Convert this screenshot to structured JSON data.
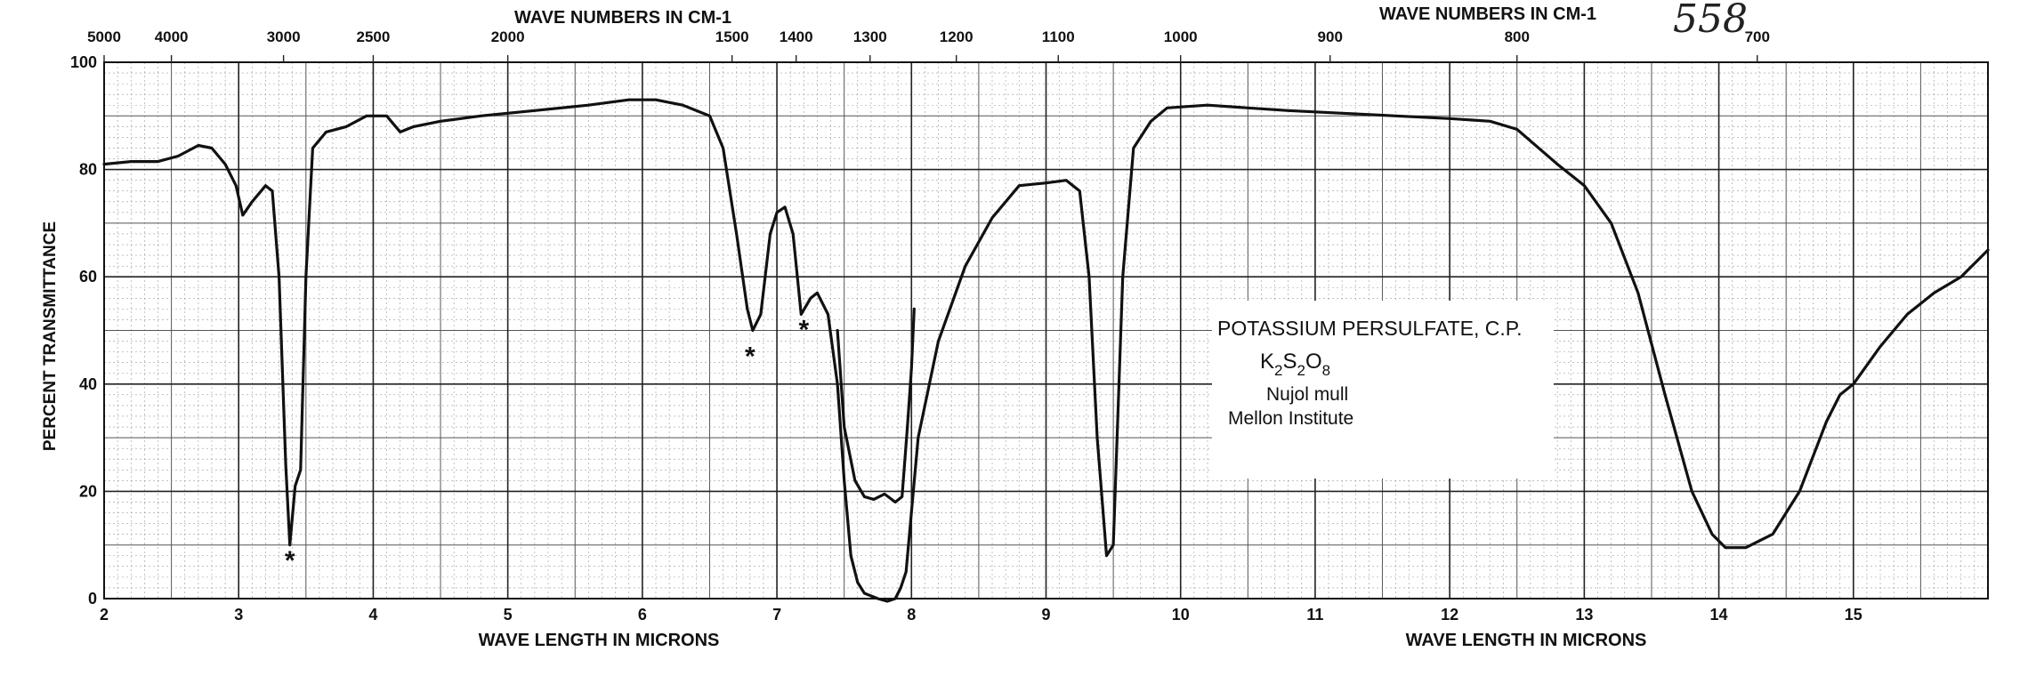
{
  "page_number": "558",
  "chart_data": {
    "type": "line",
    "title": "",
    "xlabel": "WAVE LENGTH IN MICRONS",
    "ylabel": "PERCENT TRANSMITTANCE",
    "top_axis_label": "WAVE NUMBERS IN CM-1",
    "xlim": [
      2,
      16
    ],
    "ylim": [
      0,
      100
    ],
    "x_ticks": [
      2,
      3,
      4,
      5,
      6,
      7,
      8,
      9,
      10,
      11,
      12,
      13,
      14,
      15
    ],
    "y_ticks": [
      0,
      20,
      40,
      60,
      80,
      100
    ],
    "top_ticks": [
      5000,
      4000,
      3000,
      2500,
      2000,
      1500,
      1400,
      1300,
      1200,
      1100,
      1000,
      900,
      800,
      700
    ],
    "grid": true,
    "annotation": {
      "lines": [
        "POTASSIUM PERSULFATE, C.P.",
        "K2S2O8",
        "Nujol mull",
        "Mellon Institute"
      ]
    },
    "markers": [
      {
        "x": 3.38,
        "y": 7,
        "symbol": "*"
      },
      {
        "x": 6.8,
        "y": 45,
        "symbol": "*"
      },
      {
        "x": 7.2,
        "y": 50,
        "symbol": "*"
      }
    ],
    "series": [
      {
        "points": [
          [
            2.0,
            81
          ],
          [
            2.2,
            81.5
          ],
          [
            2.4,
            81.5
          ],
          [
            2.55,
            82.5
          ],
          [
            2.7,
            84.5
          ],
          [
            2.8,
            84
          ],
          [
            2.9,
            81
          ],
          [
            2.98,
            77
          ],
          [
            3.03,
            71.5
          ],
          [
            3.1,
            74
          ],
          [
            3.2,
            77
          ],
          [
            3.25,
            76
          ],
          [
            3.3,
            60
          ],
          [
            3.35,
            25
          ],
          [
            3.38,
            10
          ],
          [
            3.42,
            21
          ],
          [
            3.46,
            24
          ],
          [
            3.5,
            60
          ],
          [
            3.55,
            84
          ],
          [
            3.65,
            87
          ],
          [
            3.8,
            88
          ],
          [
            3.95,
            90
          ],
          [
            4.1,
            90
          ],
          [
            4.2,
            87
          ],
          [
            4.3,
            88
          ],
          [
            4.5,
            89
          ],
          [
            4.8,
            90
          ],
          [
            5.2,
            91
          ],
          [
            5.6,
            92
          ],
          [
            5.9,
            93
          ],
          [
            6.1,
            93
          ],
          [
            6.3,
            92
          ],
          [
            6.5,
            90
          ],
          [
            6.6,
            84
          ],
          [
            6.7,
            68
          ],
          [
            6.78,
            54
          ],
          [
            6.82,
            50
          ],
          [
            6.88,
            53
          ],
          [
            6.95,
            68
          ],
          [
            7.0,
            72
          ],
          [
            7.06,
            73
          ],
          [
            7.12,
            68
          ],
          [
            7.18,
            53
          ],
          [
            7.25,
            56
          ],
          [
            7.3,
            57
          ],
          [
            7.38,
            53
          ],
          [
            7.45,
            40
          ],
          [
            7.5,
            22
          ],
          [
            7.55,
            8
          ],
          [
            7.6,
            3
          ],
          [
            7.65,
            1
          ],
          [
            7.75,
            0
          ],
          [
            7.82,
            -0.5
          ],
          [
            7.88,
            0
          ],
          [
            7.92,
            2
          ],
          [
            7.96,
            5
          ],
          [
            8.05,
            30
          ],
          [
            8.2,
            48
          ],
          [
            8.4,
            62
          ],
          [
            8.6,
            71
          ],
          [
            8.8,
            77
          ],
          [
            9.0,
            77.5
          ],
          [
            9.15,
            78
          ],
          [
            9.25,
            76
          ],
          [
            9.32,
            60
          ],
          [
            9.38,
            30
          ],
          [
            9.45,
            8
          ],
          [
            9.5,
            10
          ],
          [
            9.57,
            60
          ],
          [
            9.65,
            84
          ],
          [
            9.78,
            89
          ],
          [
            9.9,
            91.5
          ],
          [
            10.2,
            92
          ],
          [
            10.5,
            91.5
          ],
          [
            10.8,
            91
          ],
          [
            11.2,
            90.5
          ],
          [
            11.6,
            90
          ],
          [
            12.0,
            89.5
          ],
          [
            12.3,
            89
          ],
          [
            12.5,
            87.5
          ],
          [
            12.8,
            81
          ],
          [
            13.0,
            77
          ],
          [
            13.2,
            70
          ],
          [
            13.4,
            57
          ],
          [
            13.6,
            38
          ],
          [
            13.8,
            20
          ],
          [
            13.95,
            12
          ],
          [
            14.05,
            9.5
          ],
          [
            14.2,
            9.5
          ],
          [
            14.4,
            12
          ],
          [
            14.6,
            20
          ],
          [
            14.8,
            33
          ],
          [
            14.9,
            38
          ],
          [
            15.0,
            40
          ],
          [
            15.2,
            47
          ],
          [
            15.4,
            53
          ],
          [
            15.6,
            57
          ],
          [
            15.8,
            60
          ],
          [
            16.0,
            65
          ]
        ]
      },
      {
        "points": [
          [
            7.45,
            50
          ],
          [
            7.5,
            32
          ],
          [
            7.58,
            22
          ],
          [
            7.65,
            19
          ],
          [
            7.72,
            18.5
          ],
          [
            7.8,
            19.5
          ],
          [
            7.88,
            18
          ],
          [
            7.93,
            19
          ],
          [
            7.97,
            32
          ],
          [
            8.0,
            43
          ],
          [
            8.02,
            54
          ]
        ]
      }
    ]
  }
}
